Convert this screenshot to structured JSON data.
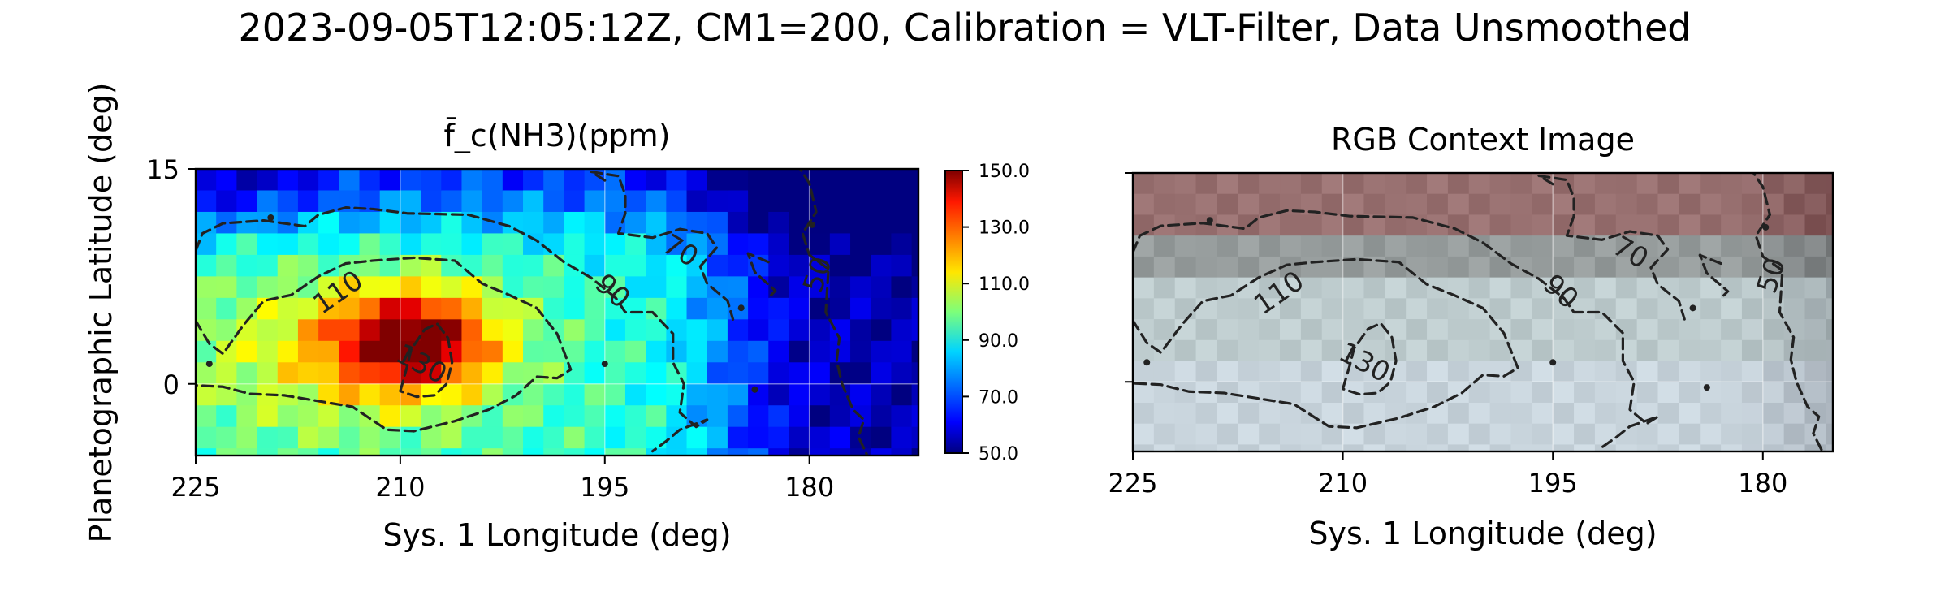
{
  "figure": {
    "title": "2023-09-05T12:05:12Z, CM1=200, Calibration = VLT-Filter, Data Unsmoothed"
  },
  "chart_data": [
    {
      "type": "heatmap",
      "title": "f̄_c(NH3)(ppm)",
      "xlabel": "Sys. 1 Longitude (deg)",
      "ylabel": "Planetographic Latitude (deg)",
      "xlim": [
        225,
        172
      ],
      "ylim": [
        -5,
        15
      ],
      "xticks": [
        225,
        210,
        195,
        180
      ],
      "yticks": [
        15,
        0
      ],
      "grid": true,
      "colormap": "jet",
      "colorbar": {
        "range": [
          50,
          150
        ],
        "ticks": [
          "150.0",
          "130.0",
          "110.0",
          "90.0",
          "70.0",
          "50.0"
        ]
      },
      "contour_levels": [
        50,
        70,
        90,
        110,
        130
      ],
      "contour_labels": [
        "110",
        "130",
        "90",
        "70",
        "50"
      ],
      "data_note_grid": {
        "lon_start": 225,
        "lon_step": -1.5,
        "lat_start": 15,
        "lat_step": -1.5
      }
    },
    {
      "type": "image",
      "title": "RGB Context Image",
      "xlabel": "Sys. 1 Longitude (deg)",
      "xlim": [
        225,
        175
      ],
      "ylim": [
        -5,
        15
      ],
      "xticks": [
        225,
        210,
        195,
        180
      ],
      "grid": true,
      "contour_levels": [
        50,
        70,
        90,
        110,
        130
      ],
      "contour_labels": [
        "110",
        "130",
        "90",
        "70",
        "50"
      ],
      "colors": {
        "band_red": "#9a6f6f",
        "band_gray": "#a7b0ae",
        "band_light": "#cfd8de"
      }
    }
  ]
}
